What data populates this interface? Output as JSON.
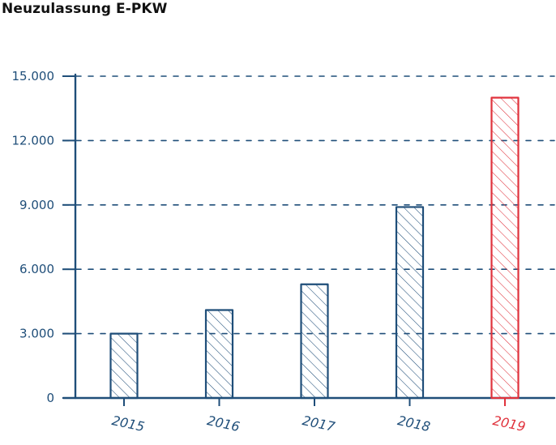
{
  "title": "Neuzulassung E-PKW",
  "colors": {
    "axis": "#1f4e79",
    "grid": "#1f4e79",
    "bar": "#1f4e79",
    "highlight": "#e0323c",
    "label": "#1f4e79"
  },
  "chart_data": {
    "type": "bar",
    "title": "Neuzulassung E-PKW",
    "xlabel": "",
    "ylabel": "",
    "categories": [
      "2015",
      "2016",
      "2017",
      "2018",
      "2019"
    ],
    "values": [
      3000,
      4100,
      5300,
      8900,
      14000
    ],
    "highlight_category": "2019",
    "ylim": [
      0,
      15000
    ],
    "yticks": [
      0,
      3000,
      6000,
      9000,
      12000,
      15000
    ],
    "ytick_labels": [
      "0",
      "3.000",
      "6.000",
      "9.000",
      "12.000",
      "15.000"
    ],
    "grid": true,
    "grid_style": "dashed",
    "bar_fill": "hatched",
    "legend": "none"
  }
}
